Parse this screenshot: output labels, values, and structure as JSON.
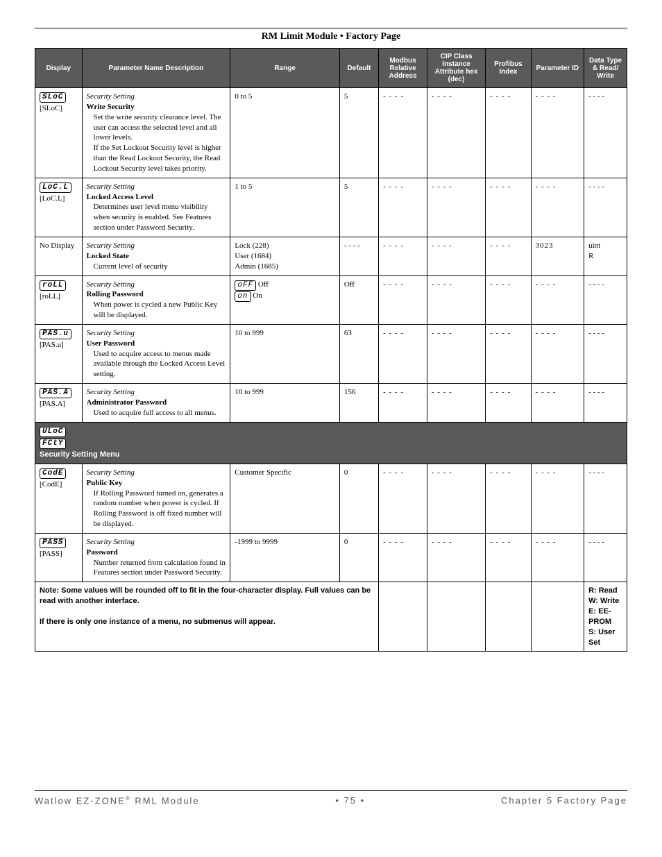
{
  "header": {
    "title": "RM Limit Module    •    Factory Page"
  },
  "columns": {
    "c1": "Display",
    "c2": "Parameter Name\nDescription",
    "c3": "Range",
    "c4": "Default",
    "c5": "Modbus Relative Address",
    "c6": "CIP Class Instance Attribute hex (dec)",
    "c7": "Profibus Index",
    "c8": "Parameter ID",
    "c9": "Data Type & Read/ Write"
  },
  "rows": [
    {
      "display_seg": "SLoC",
      "display_lbl": "[SLoC]",
      "param_cat": "Security Setting",
      "param_name": "Write Security",
      "param_desc": "Set the write security clearance level. The user can access the selected level and all lower levels.\nIf the Set Lockout Security level is higher than the Read Lockout Security, the Read Lockout Security level takes priority.",
      "range": "0 to 5",
      "default": "5",
      "modbus": "- - - -",
      "cip": "- - - -",
      "profibus": "- - - -",
      "pid": "- - - -",
      "dtype": "- - - -"
    },
    {
      "display_seg": "LoC.L",
      "display_lbl": "[LoC.L]",
      "param_cat": "Security Setting",
      "param_name": "Locked Access Level",
      "param_desc": "Determines user level menu visibility when security is enabled. See Features section under Password Security.",
      "range": "1 to 5",
      "default": "5",
      "modbus": "- - - -",
      "cip": "- - - -",
      "profibus": "- - - -",
      "pid": "- - - -",
      "dtype": "- - - -"
    },
    {
      "display_seg": "",
      "display_lbl": "No Display",
      "param_cat": "Security Setting",
      "param_name": "Locked State",
      "param_desc": "Current level of security",
      "range": "Lock (228)\nUser (1684)\nAdmin (1685)",
      "default": "- - - -",
      "modbus": "- - - -",
      "cip": "- - - -",
      "profibus": "- - - -",
      "pid": "3023",
      "dtype": "uint\nR"
    },
    {
      "display_seg": "roLL",
      "display_lbl": "[roLL]",
      "param_cat": "Security Setting",
      "param_name": "Rolling Password",
      "param_desc": "When power is cycled a new Public Key will be displayed.",
      "range_opts": [
        {
          "seg": "oFF",
          "lbl": "Off"
        },
        {
          "seg": " on",
          "lbl": "On"
        }
      ],
      "default": "Off",
      "modbus": "- - - -",
      "cip": "- - - -",
      "profibus": "- - - -",
      "pid": "- - - -",
      "dtype": "- - - -"
    },
    {
      "display_seg": "PAS.u",
      "display_lbl": "[PAS.u]",
      "param_cat": "Security Setting",
      "param_name": "User Password",
      "param_desc": "Used to acquire access to menus made available through the Locked Access Level setting.",
      "range": "10 to 999",
      "default": "63",
      "modbus": "- - - -",
      "cip": "- - - -",
      "profibus": "- - - -",
      "pid": "- - - -",
      "dtype": "- - - -"
    },
    {
      "display_seg": "PAS.A",
      "display_lbl": "[PAS.A]",
      "param_cat": "Security Setting",
      "param_name": "Administrator Password",
      "param_desc": "Used to acquire full access to all menus.",
      "range": "10 to 999",
      "default": "156",
      "modbus": "- - - -",
      "cip": "- - - -",
      "profibus": "- - - -",
      "pid": "- - - -",
      "dtype": "- - - -"
    }
  ],
  "section": {
    "seg1": "ULoC",
    "seg2": "FCtY",
    "title": "Security Setting Menu"
  },
  "rows2": [
    {
      "display_seg": "CodE",
      "display_lbl": "[CodE]",
      "param_cat": "Security Setting",
      "param_name": "Public Key",
      "param_desc": "If Rolling Password turned on, generates a random number when power is cycled. If Rolling Password is off fixed number will be displayed.",
      "range": "Customer Specific",
      "default": "0",
      "modbus": "- - - -",
      "cip": "- - - -",
      "profibus": "- - - -",
      "pid": "- - - -",
      "dtype": "- - - -"
    },
    {
      "display_seg": "PASS",
      "display_lbl": "[PASS]",
      "param_cat": "Security Setting",
      "param_name": "Password",
      "param_desc": "Number returned from calculation found in Features section under Password Security.",
      "range": "-1999 to 9999",
      "default": "0",
      "modbus": "- - - -",
      "cip": "- - - -",
      "profibus": "- - - -",
      "pid": "- - - -",
      "dtype": "- - - -"
    }
  ],
  "note": {
    "line1": "Note: Some values will be rounded off to fit in the four-character display. Full values can be read with another interface.",
    "line2": "If there is only one instance of a menu, no submenus will appear."
  },
  "legend": "R: Read\nW: Write\nE: EE-PROM\nS: User Set",
  "footer": {
    "left": "Watlow EZ-ZONE",
    "left2": " RML Module",
    "center": "•  75  •",
    "right": "Chapter 5 Factory Page"
  },
  "col_widths": [
    "60",
    "190",
    "140",
    "50",
    "62",
    "75",
    "58",
    "68",
    "55"
  ]
}
